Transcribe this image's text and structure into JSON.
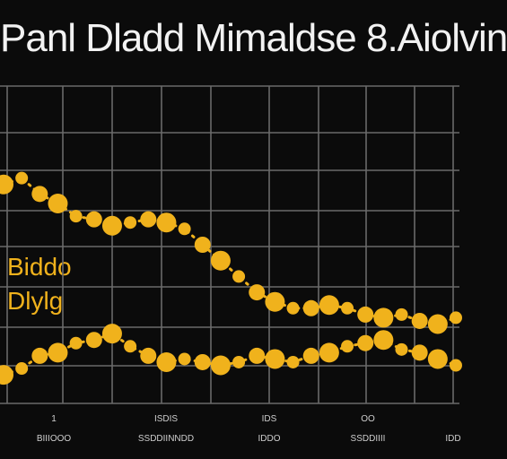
{
  "chart_data": {
    "type": "line",
    "title": "Panl Dladd Mimaldse 8.Aiolvin",
    "labels_left": [
      "Biddo",
      "Dlylg"
    ],
    "x": [
      0,
      1,
      2,
      3,
      4,
      5,
      6,
      7,
      8,
      9,
      10,
      11,
      12,
      13,
      14,
      15,
      16,
      17,
      18,
      19,
      20,
      21,
      22,
      23,
      24,
      25
    ],
    "series": [
      {
        "name": "",
        "color": "#f0b21c",
        "values": [
          6.9,
          7.1,
          6.6,
          6.3,
          5.9,
          5.8,
          5.6,
          5.7,
          5.8,
          5.7,
          5.5,
          5.0,
          4.5,
          4.0,
          3.5,
          3.2,
          3.0,
          3.0,
          3.1,
          3.0,
          2.8,
          2.7,
          2.8,
          2.6,
          2.5,
          2.7
        ]
      },
      {
        "name": "",
        "color": "#f0b21c",
        "values": [
          0.9,
          1.1,
          1.5,
          1.6,
          1.9,
          2.0,
          2.2,
          1.8,
          1.5,
          1.3,
          1.4,
          1.3,
          1.2,
          1.3,
          1.5,
          1.4,
          1.3,
          1.5,
          1.6,
          1.8,
          1.9,
          2.0,
          1.7,
          1.6,
          1.4,
          1.2
        ]
      }
    ],
    "ylim": [
      0,
      10
    ],
    "grid": true,
    "xtick_labels": [
      {
        "num": "1",
        "text": "BIIIOOO"
      },
      {
        "num": "ISDIS",
        "text": "SSDDIINNDD"
      },
      {
        "num": "IDS",
        "text": "IDDO"
      },
      {
        "num": "OO",
        "text": "SSDDIIII"
      },
      {
        "num": "",
        "text": "IDD"
      }
    ]
  }
}
